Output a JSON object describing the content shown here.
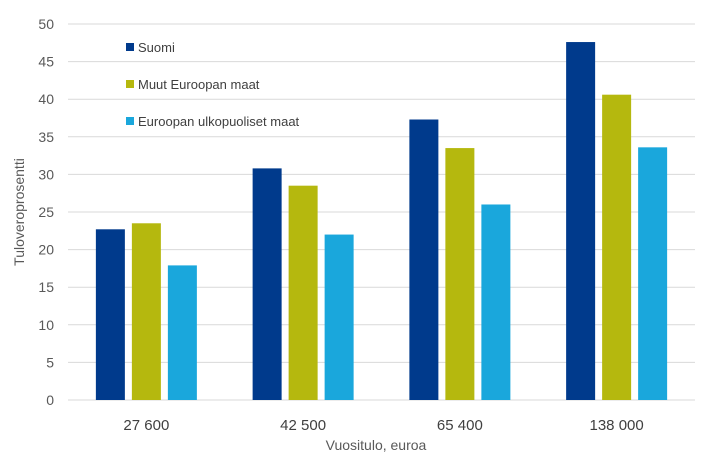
{
  "chart_data": {
    "type": "bar",
    "title": "",
    "xlabel": "Vuositulo, euroa",
    "ylabel": "Tuloveroprosentti",
    "categories": [
      "27 600",
      "42 500",
      "65 400",
      "138 000"
    ],
    "series": [
      {
        "name": "Suomi",
        "values": [
          22.7,
          30.8,
          37.3,
          47.6
        ],
        "color": "#003a8c"
      },
      {
        "name": "Muut Euroopan maat",
        "values": [
          23.5,
          28.5,
          33.5,
          40.6
        ],
        "color": "#b5b80e"
      },
      {
        "name": "Euroopan ulkopuoliset maat",
        "values": [
          17.9,
          22.0,
          26.0,
          33.6
        ],
        "color": "#1aa7dc"
      }
    ],
    "ylim": [
      0,
      50
    ],
    "yticks": [
      0,
      5,
      10,
      15,
      20,
      25,
      30,
      35,
      40,
      45,
      50
    ],
    "grid": true,
    "legend_position": "top-left"
  }
}
